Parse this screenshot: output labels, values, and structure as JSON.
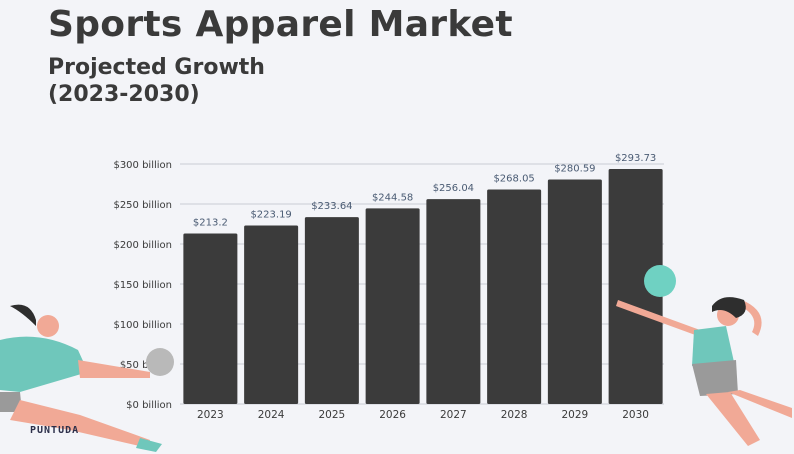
{
  "header": {
    "title": "Sports Apparel Market",
    "subtitle_line1": "Projected Growth",
    "subtitle_line2": "(2023-2030)"
  },
  "logo_text": "PUNTUDA",
  "colors": {
    "bar": "#3b3b3b",
    "grid": "#c9cbd3",
    "axis_text": "#3a3a3a",
    "label_text": "#4a5b73",
    "ball": "#6fd1c2",
    "ball_gray": "#b9b9b9",
    "shirt": "#6fc7bb",
    "skin": "#f1a996",
    "hair": "#2e2e2e",
    "shorts": "#9a9a9a"
  },
  "chart_data": {
    "type": "bar",
    "categories": [
      "2023",
      "2024",
      "2025",
      "2026",
      "2027",
      "2028",
      "2029",
      "2030"
    ],
    "values": [
      213.2,
      223.19,
      233.64,
      244.58,
      256.04,
      268.05,
      280.59,
      293.73
    ],
    "value_labels": [
      "$213.2",
      "$223.19",
      "$233.64",
      "$244.58",
      "$256.04",
      "$268.05",
      "$280.59",
      "$293.73"
    ],
    "y_ticks": [
      0,
      50,
      100,
      150,
      200,
      250,
      300
    ],
    "y_tick_labels": [
      "$0 billion",
      "$50 billion",
      "$100 billion",
      "$150 billion",
      "$200 billion",
      "$250 billion",
      "$300 billion"
    ],
    "ylim": [
      0,
      300
    ],
    "grid": true,
    "title": "",
    "xlabel": "",
    "ylabel": ""
  }
}
